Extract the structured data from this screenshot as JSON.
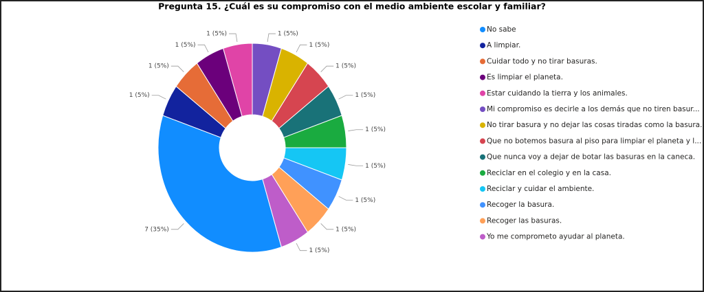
{
  "chart_data": {
    "type": "pie",
    "title": "Pregunta 15. ¿Cuál es su compromiso con el medio ambiente escolar y familiar?",
    "categories": [
      "No sabe",
      "A limpiar.",
      "Cuidar todo y no tirar basuras.",
      "Es limpiar el planeta.",
      "Estar cuidando la tierra y los animales.",
      "Mi compromiso es decirle a los demás que no tiren basur...",
      "No tirar basura y no dejar las cosas tiradas como la basura.",
      "Que no botemos basura al piso para limpiar el planeta y l...",
      "Que nunca voy a dejar de botar las basuras en la caneca.",
      "Reciclar en el colegio y en la casa.",
      "Reciclar y cuidar el ambiente.",
      "Recoger la basura.",
      "Recoger las basuras.",
      "Yo me comprometo ayudar al planeta."
    ],
    "values": [
      7,
      1,
      1,
      1,
      1,
      1,
      1,
      1,
      1,
      1,
      1,
      1,
      1,
      1
    ],
    "value_labels": [
      "7 (35%)",
      "1 (5%)",
      "1 (5%)",
      "1 (5%)",
      "1 (5%)",
      "1 (5%)",
      "1 (5%)",
      "1 (5%)",
      "1 (5%)",
      "1 (5%)",
      "1 (5%)",
      "1 (5%)",
      "1 (5%)",
      "1 (5%)"
    ],
    "colors": [
      "#118DFF",
      "#12239E",
      "#E66C37",
      "#6B007B",
      "#E044A7",
      "#744EC2",
      "#D9B300",
      "#D64550",
      "#197278",
      "#1AAB40",
      "#15C6F4",
      "#4092FF",
      "#FFA058",
      "#BE5DC9"
    ],
    "legend": "right"
  }
}
